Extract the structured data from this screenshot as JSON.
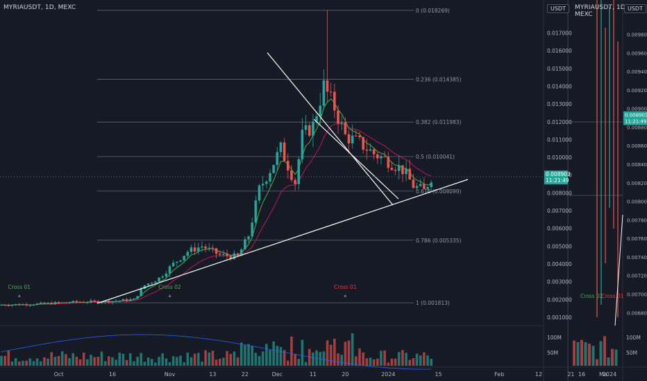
{
  "main": {
    "title": "MYRIAUSDT, 1D, MEXC",
    "unit": "USDT",
    "last_price": "0.008903",
    "countdown": "11:21:49",
    "fib": [
      {
        "label": "0 (0.018269)",
        "price": 0.018269
      },
      {
        "label": "0.236 (0.014385)",
        "price": 0.014385
      },
      {
        "label": "0.382 (0.011983)",
        "price": 0.011983
      },
      {
        "label": "0.5 (0.010041)",
        "price": 0.010041
      },
      {
        "label": "0.618 (0.008099)",
        "price": 0.008099
      },
      {
        "label": "0.786 (0.005335)",
        "price": 0.005335
      },
      {
        "label": "1 (0.001813)",
        "price": 0.001813
      }
    ],
    "signals": [
      {
        "text": "Cross 01",
        "date": "2023-09-20",
        "color": "#4caf50"
      },
      {
        "text": "Cross 02",
        "date": "2023-11-01",
        "color": "#4caf50"
      },
      {
        "text": "Cross 01",
        "date": "2023-12-20",
        "color": "#f23645"
      }
    ]
  },
  "chart_data": [
    {
      "type": "candlestick",
      "symbol": "MYRIAUSDT",
      "interval": "1D",
      "exchange": "MEXC",
      "y_axis": {
        "min": 0.0005,
        "max": 0.0185,
        "ticks": [
          "0.017000",
          "0.016000",
          "0.015000",
          "0.014000",
          "0.013000",
          "0.012000",
          "0.011000",
          "0.010000",
          "0.009000",
          "0.008000",
          "0.007000",
          "0.006000",
          "0.005000",
          "0.004000",
          "0.003000",
          "0.002000",
          "0.001000"
        ]
      },
      "x_axis": {
        "start": "2023-09-15",
        "end": "2024-03-01",
        "ticks": [
          {
            "label": "Oct",
            "date": "2023-10-01"
          },
          {
            "label": "16",
            "date": "2023-10-16"
          },
          {
            "label": "Nov",
            "date": "2023-11-01"
          },
          {
            "label": "13",
            "date": "2023-11-13"
          },
          {
            "label": "22",
            "date": "2023-11-22"
          },
          {
            "label": "Dec",
            "date": "2023-12-01"
          },
          {
            "label": "11",
            "date": "2023-12-11"
          },
          {
            "label": "20",
            "date": "2023-12-20"
          },
          {
            "label": "2024",
            "date": "2024-01-01"
          },
          {
            "label": "15",
            "date": "2024-01-15"
          },
          {
            "label": "Feb",
            "date": "2024-02-01"
          },
          {
            "label": "12",
            "date": "2024-02-12"
          },
          {
            "label": "21",
            "date": "2024-02-21"
          },
          {
            "label": "Ma",
            "date": "2024-03-01"
          }
        ]
      },
      "series_anchors": [
        {
          "date": "2023-09-15",
          "close": 0.0017
        },
        {
          "date": "2023-09-25",
          "close": 0.00175
        },
        {
          "date": "2023-10-05",
          "close": 0.00185
        },
        {
          "date": "2023-10-15",
          "close": 0.0019
        },
        {
          "date": "2023-10-22",
          "close": 0.002
        },
        {
          "date": "2023-10-25",
          "close": 0.0028
        },
        {
          "date": "2023-10-29",
          "close": 0.0032
        },
        {
          "date": "2023-11-02",
          "close": 0.004
        },
        {
          "date": "2023-11-06",
          "close": 0.0047
        },
        {
          "date": "2023-11-10",
          "close": 0.005
        },
        {
          "date": "2023-11-15",
          "close": 0.0045
        },
        {
          "date": "2023-11-20",
          "close": 0.0044
        },
        {
          "date": "2023-11-23",
          "close": 0.0056
        },
        {
          "date": "2023-11-26",
          "close": 0.0082
        },
        {
          "date": "2023-11-29",
          "close": 0.0093
        },
        {
          "date": "2023-12-02",
          "close": 0.0105
        },
        {
          "date": "2023-12-06",
          "close": 0.0086
        },
        {
          "date": "2023-12-08",
          "close": 0.0112
        },
        {
          "date": "2023-12-11",
          "close": 0.0118
        },
        {
          "date": "2023-12-14",
          "close": 0.014
        },
        {
          "date": "2023-12-17",
          "close": 0.0128
        },
        {
          "date": "2023-12-20",
          "close": 0.0112
        },
        {
          "date": "2023-12-24",
          "close": 0.0108
        },
        {
          "date": "2023-12-28",
          "close": 0.0102
        },
        {
          "date": "2024-01-01",
          "close": 0.0098
        },
        {
          "date": "2024-01-05",
          "close": 0.0093
        },
        {
          "date": "2024-01-08",
          "close": 0.0084
        },
        {
          "date": "2024-01-11",
          "close": 0.0081
        },
        {
          "date": "2024-01-13",
          "close": 0.0089
        }
      ],
      "volume_axis": {
        "ticks": [
          "100M",
          "50M"
        ],
        "max": 120
      }
    },
    {
      "type": "candlestick",
      "y_axis": {
        "min": 0.00675,
        "max": 0.01002,
        "ticks": [
          "0.009800",
          "0.009600",
          "0.009400",
          "0.009200",
          "0.009000",
          "0.008800",
          "0.008600",
          "0.008400",
          "0.008200",
          "0.008000",
          "0.007800",
          "0.007600",
          "0.007400",
          "0.007200",
          "0.007000",
          "0.006800"
        ]
      },
      "x_axis": {
        "ticks": [
          {
            "label": "16"
          },
          {
            "label": "2024"
          }
        ]
      },
      "volume_axis": {
        "ticks": [
          "100M",
          "50M"
        ]
      },
      "labels": [
        {
          "text": "Cross 02",
          "color": "#4caf50"
        },
        {
          "text": "Cross 01",
          "color": "#f23645"
        }
      ]
    }
  ]
}
